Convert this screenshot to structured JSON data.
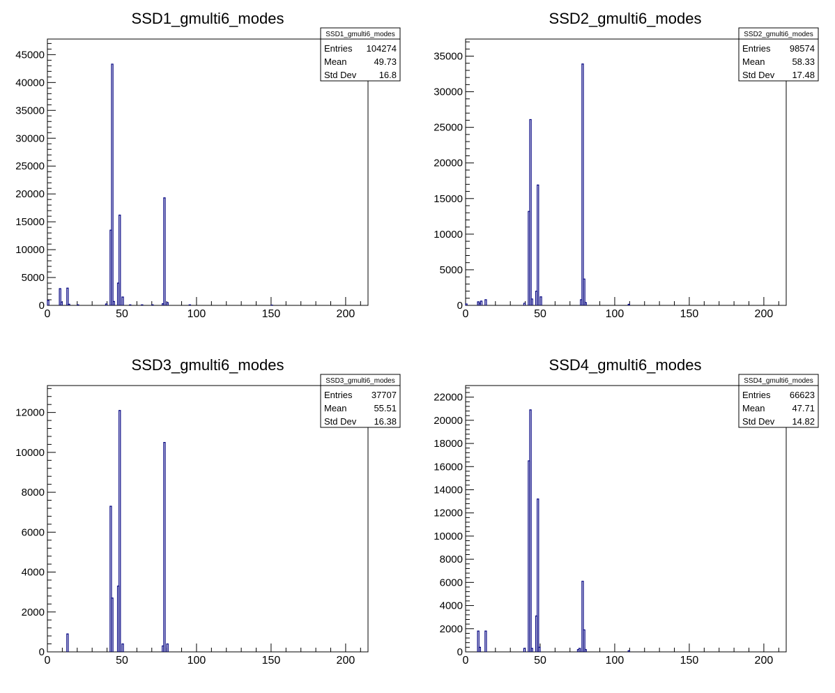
{
  "chart_data": [
    {
      "type": "bar",
      "title": "SSD1_gmulti6_modes",
      "xlabel": "",
      "ylabel": "",
      "xlim": [
        0,
        215
      ],
      "ylim": [
        0,
        47800
      ],
      "xticks": [
        0,
        50,
        100,
        150,
        200
      ],
      "yticks": [
        0,
        5000,
        10000,
        15000,
        20000,
        25000,
        30000,
        35000,
        40000,
        45000
      ],
      "grid": false,
      "line_color": "#000080",
      "stats": {
        "title": "SSD1_gmulti6_modes",
        "rows": [
          {
            "label": "Entries",
            "value": "104274"
          },
          {
            "label": "Mean",
            "value": "49.73"
          },
          {
            "label": "Std Dev",
            "value": "16.8"
          }
        ]
      },
      "bins": [
        {
          "x": 0,
          "y": 900
        },
        {
          "x": 8,
          "y": 3000
        },
        {
          "x": 9,
          "y": 600
        },
        {
          "x": 13,
          "y": 3100
        },
        {
          "x": 14,
          "y": 200
        },
        {
          "x": 20,
          "y": 100
        },
        {
          "x": 39,
          "y": 250
        },
        {
          "x": 42,
          "y": 13500
        },
        {
          "x": 43,
          "y": 43300
        },
        {
          "x": 44,
          "y": 700
        },
        {
          "x": 47,
          "y": 4000
        },
        {
          "x": 48,
          "y": 16200
        },
        {
          "x": 50,
          "y": 1500
        },
        {
          "x": 55,
          "y": 100
        },
        {
          "x": 63,
          "y": 100
        },
        {
          "x": 70,
          "y": 100
        },
        {
          "x": 77,
          "y": 300
        },
        {
          "x": 78,
          "y": 19300
        },
        {
          "x": 80,
          "y": 500
        },
        {
          "x": 95,
          "y": 100
        },
        {
          "x": 150,
          "y": 50
        }
      ]
    },
    {
      "type": "bar",
      "title": "SSD2_gmulti6_modes",
      "xlabel": "",
      "ylabel": "",
      "xlim": [
        0,
        215
      ],
      "ylim": [
        0,
        37400
      ],
      "xticks": [
        0,
        50,
        100,
        150,
        200
      ],
      "yticks": [
        0,
        5000,
        10000,
        15000,
        20000,
        25000,
        30000,
        35000
      ],
      "grid": false,
      "line_color": "#000080",
      "stats": {
        "title": "SSD2_gmulti6_modes",
        "rows": [
          {
            "label": "Entries",
            "value": "98574"
          },
          {
            "label": "Mean",
            "value": "58.33"
          },
          {
            "label": "Std Dev",
            "value": "17.48"
          }
        ]
      },
      "bins": [
        {
          "x": 0,
          "y": 200
        },
        {
          "x": 8,
          "y": 500
        },
        {
          "x": 9,
          "y": 300
        },
        {
          "x": 10,
          "y": 600
        },
        {
          "x": 13,
          "y": 800
        },
        {
          "x": 39,
          "y": 300
        },
        {
          "x": 42,
          "y": 13200
        },
        {
          "x": 43,
          "y": 26100
        },
        {
          "x": 44,
          "y": 900
        },
        {
          "x": 47,
          "y": 2000
        },
        {
          "x": 48,
          "y": 16900
        },
        {
          "x": 50,
          "y": 1200
        },
        {
          "x": 77,
          "y": 800
        },
        {
          "x": 78,
          "y": 33900
        },
        {
          "x": 79,
          "y": 3700
        },
        {
          "x": 80,
          "y": 400
        },
        {
          "x": 109,
          "y": 150
        }
      ]
    },
    {
      "type": "bar",
      "title": "SSD3_gmulti6_modes",
      "xlabel": "",
      "ylabel": "",
      "xlim": [
        0,
        215
      ],
      "ylim": [
        0,
        13350
      ],
      "xticks": [
        0,
        50,
        100,
        150,
        200
      ],
      "yticks": [
        0,
        2000,
        4000,
        6000,
        8000,
        10000,
        12000
      ],
      "grid": false,
      "line_color": "#000080",
      "stats": {
        "title": "SSD3_gmulti6_modes",
        "rows": [
          {
            "label": "Entries",
            "value": "37707"
          },
          {
            "label": "Mean",
            "value": "55.51"
          },
          {
            "label": "Std Dev",
            "value": "16.38"
          }
        ]
      },
      "bins": [
        {
          "x": 13,
          "y": 900
        },
        {
          "x": 42,
          "y": 7300
        },
        {
          "x": 43,
          "y": 2700
        },
        {
          "x": 47,
          "y": 3300
        },
        {
          "x": 48,
          "y": 12100
        },
        {
          "x": 50,
          "y": 400
        },
        {
          "x": 77,
          "y": 300
        },
        {
          "x": 78,
          "y": 10500
        },
        {
          "x": 80,
          "y": 400
        }
      ]
    },
    {
      "type": "bar",
      "title": "SSD4_gmulti6_modes",
      "xlabel": "",
      "ylabel": "",
      "xlim": [
        0,
        215
      ],
      "ylim": [
        0,
        23000
      ],
      "xticks": [
        0,
        50,
        100,
        150,
        200
      ],
      "yticks": [
        0,
        2000,
        4000,
        6000,
        8000,
        10000,
        12000,
        14000,
        16000,
        18000,
        20000,
        22000
      ],
      "grid": false,
      "line_color": "#000080",
      "stats": {
        "title": "SSD4_gmulti6_modes",
        "rows": [
          {
            "label": "Entries",
            "value": "66623"
          },
          {
            "label": "Mean",
            "value": "47.71"
          },
          {
            "label": "Std Dev",
            "value": "14.82"
          }
        ]
      },
      "bins": [
        {
          "x": 8,
          "y": 1800
        },
        {
          "x": 9,
          "y": 400
        },
        {
          "x": 13,
          "y": 1800
        },
        {
          "x": 39,
          "y": 300
        },
        {
          "x": 42,
          "y": 16500
        },
        {
          "x": 43,
          "y": 20900
        },
        {
          "x": 44,
          "y": 300
        },
        {
          "x": 47,
          "y": 3100
        },
        {
          "x": 48,
          "y": 13200
        },
        {
          "x": 49,
          "y": 400
        },
        {
          "x": 75,
          "y": 200
        },
        {
          "x": 76,
          "y": 300
        },
        {
          "x": 78,
          "y": 6100
        },
        {
          "x": 79,
          "y": 1900
        },
        {
          "x": 80,
          "y": 200
        },
        {
          "x": 109,
          "y": 100
        }
      ]
    }
  ]
}
